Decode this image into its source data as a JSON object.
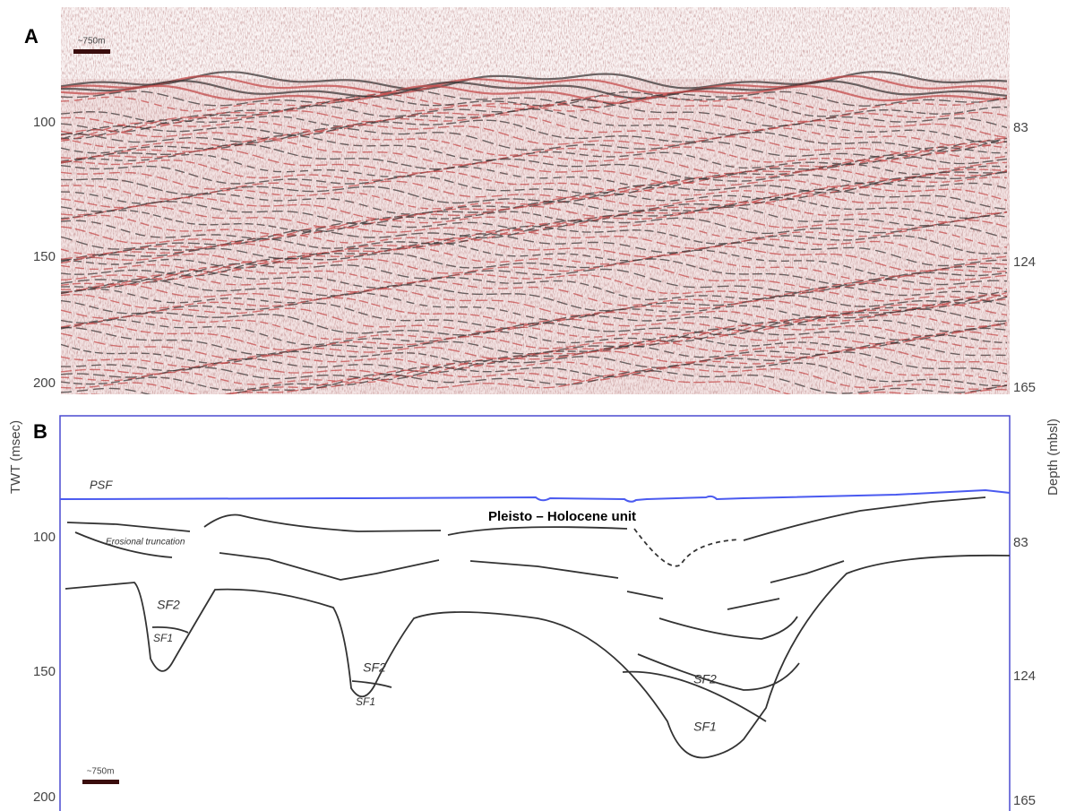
{
  "panel_a": {
    "label": "A",
    "scale_bar": "~750m",
    "twt_ticks": [
      100,
      150,
      200
    ],
    "depth_ticks": [
      83,
      124,
      165
    ]
  },
  "axis_labels": {
    "left": "TWT (msec)",
    "right": "Depth (mbsl)"
  },
  "panel_b": {
    "label": "B",
    "scale_bar": "~750m",
    "twt_ticks": [
      100,
      150,
      200
    ],
    "depth_ticks": [
      83,
      124,
      165
    ],
    "annotations": {
      "psf": "PSF",
      "unit": "Pleisto – Holocene unit",
      "erosion": "Erosional truncation",
      "fills": [
        "SF2",
        "SF1",
        "SF2",
        "SF1",
        "SF2",
        "SF1"
      ]
    }
  }
}
